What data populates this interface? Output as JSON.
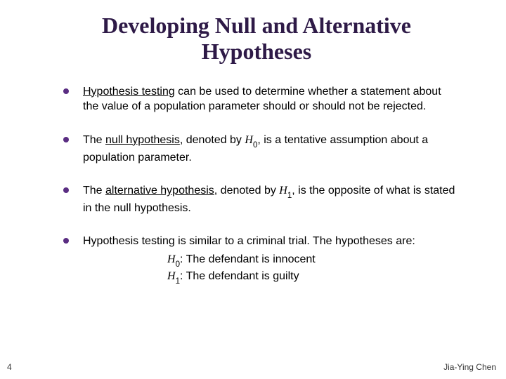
{
  "title_color": "#2e1a47",
  "bullet_color": "#5a2d82",
  "background_color": "#ffffff",
  "text_color": "#000000",
  "title_fontsize": 32,
  "body_fontsize": 16,
  "footer_fontsize": 12,
  "title": "Developing Null and Alternative Hypotheses",
  "bullets": [
    {
      "pre": "",
      "underlined": "Hypothesis testing",
      "post": " can be used to determine whether a statement about the value of a population parameter should or should not be rejected."
    },
    {
      "pre": "The ",
      "underlined": "null hypothesis",
      "post_before_symbol": ", denoted by ",
      "symbol_base": "H",
      "symbol_sub": "0",
      "post_after_symbol": ", is a tentative assumption about a population parameter."
    },
    {
      "pre": "The ",
      "underlined": "alternative hypothesis",
      "post_before_symbol": ", denoted by ",
      "symbol_base": "H",
      "symbol_sub": "1",
      "post_after_symbol": ", is the opposite of what is stated in the null hypothesis."
    },
    {
      "text": "Hypothesis testing is similar to a criminal trial.  The hypotheses are:",
      "sublines": [
        {
          "symbol_base": "H",
          "symbol_sub": "0",
          "rest": ":  The defendant is innocent"
        },
        {
          "symbol_base": "H",
          "symbol_sub": "1",
          "rest": ":  The defendant is guilty"
        }
      ]
    }
  ],
  "page_number": "4",
  "author": "Jia-Ying Chen"
}
